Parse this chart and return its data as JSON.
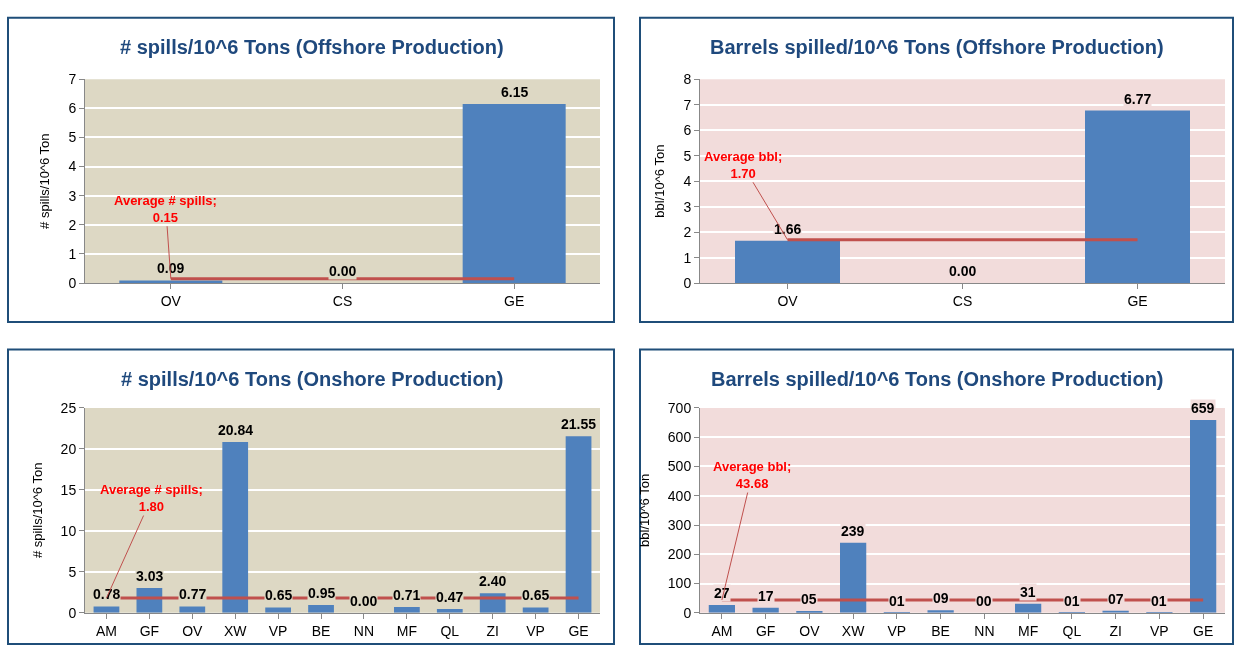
{
  "chart_data": [
    {
      "type": "bar",
      "title": "# spills/10^6 Tons (Offshore Production)",
      "ylabel": "# spills/10^6 Ton",
      "categories": [
        "OV",
        "CS",
        "GE"
      ],
      "values": [
        0.09,
        0,
        6.15
      ],
      "value_labels": [
        "0.09",
        "0.00",
        "6.15"
      ],
      "color": "#4f81bd",
      "ylim": [
        0,
        7
      ],
      "yticks": [
        0,
        1,
        2,
        3,
        4,
        5,
        6,
        7
      ],
      "grid": "y",
      "legend": false,
      "ref_lines": [
        {
          "axis": "y",
          "value": 0.15,
          "label": "Average # spills;\n0.15",
          "color": "#c0504d"
        }
      ]
    },
    {
      "type": "bar",
      "title": "Barrels spilled/10^6 Tons (Offshore Production)",
      "ylabel": "bbl/10^6 Ton",
      "categories": [
        "OV",
        "CS",
        "GE"
      ],
      "values": [
        1.66,
        0,
        6.77
      ],
      "value_labels": [
        "1.66",
        "0.00",
        "6.77"
      ],
      "color": "#4f81bd",
      "ylim": [
        0,
        8
      ],
      "yticks": [
        0,
        1,
        2,
        3,
        4,
        5,
        6,
        7,
        8
      ],
      "grid": "y",
      "legend": false,
      "ref_lines": [
        {
          "axis": "y",
          "value": 1.7,
          "label": "Average bbl;\n1.70",
          "color": "#c0504d"
        }
      ]
    },
    {
      "type": "bar",
      "title": "# spills/10^6 Tons (Onshore Production)",
      "ylabel": "# spills/10^6 Ton",
      "categories": [
        "AM",
        "GF",
        "OV",
        "XW",
        "VP",
        "BE",
        "NN",
        "MF",
        "QL",
        "ZI",
        "VP",
        "GE"
      ],
      "values": [
        0.78,
        3.03,
        0.77,
        20.84,
        0.65,
        0.95,
        0,
        0.71,
        0.47,
        2.4,
        0.65,
        21.55
      ],
      "value_labels": [
        "0.78",
        "3.03",
        "0.77",
        "20.84",
        "0.65",
        "0.95",
        "0.00",
        "0.71",
        "0.47",
        "2.40",
        "0.65",
        "21.55"
      ],
      "color": "#4f81bd",
      "ylim": [
        0,
        25
      ],
      "yticks": [
        0,
        5,
        10,
        15,
        20,
        25
      ],
      "grid": "y",
      "legend": false,
      "ref_lines": [
        {
          "axis": "y",
          "value": 1.8,
          "label": "Average # spills;\n1.80",
          "color": "#c0504d"
        }
      ]
    },
    {
      "type": "bar",
      "title": "Barrels spilled/10^6 Tons (Onshore Production)",
      "ylabel": "bbl/10^6 Ton",
      "categories": [
        "AM",
        "GF",
        "OV",
        "XW",
        "VP",
        "BE",
        "NN",
        "MF",
        "QL",
        "ZI",
        "VP",
        "GE"
      ],
      "values": [
        27,
        17,
        5,
        239,
        1,
        9,
        0,
        31,
        1,
        7,
        1,
        659
      ],
      "value_labels": [
        "27",
        "17",
        "05",
        "239",
        "01",
        "09",
        "00",
        "31",
        "01",
        "07",
        "01",
        "659"
      ],
      "color": "#4f81bd",
      "ylim": [
        0,
        700
      ],
      "yticks": [
        0,
        100,
        200,
        300,
        400,
        500,
        600,
        700
      ],
      "grid": "y",
      "legend": false,
      "ref_lines": [
        {
          "axis": "y",
          "value": 43.68,
          "label": "Average bbl;\n43.68",
          "color": "#c0504d"
        }
      ]
    }
  ]
}
